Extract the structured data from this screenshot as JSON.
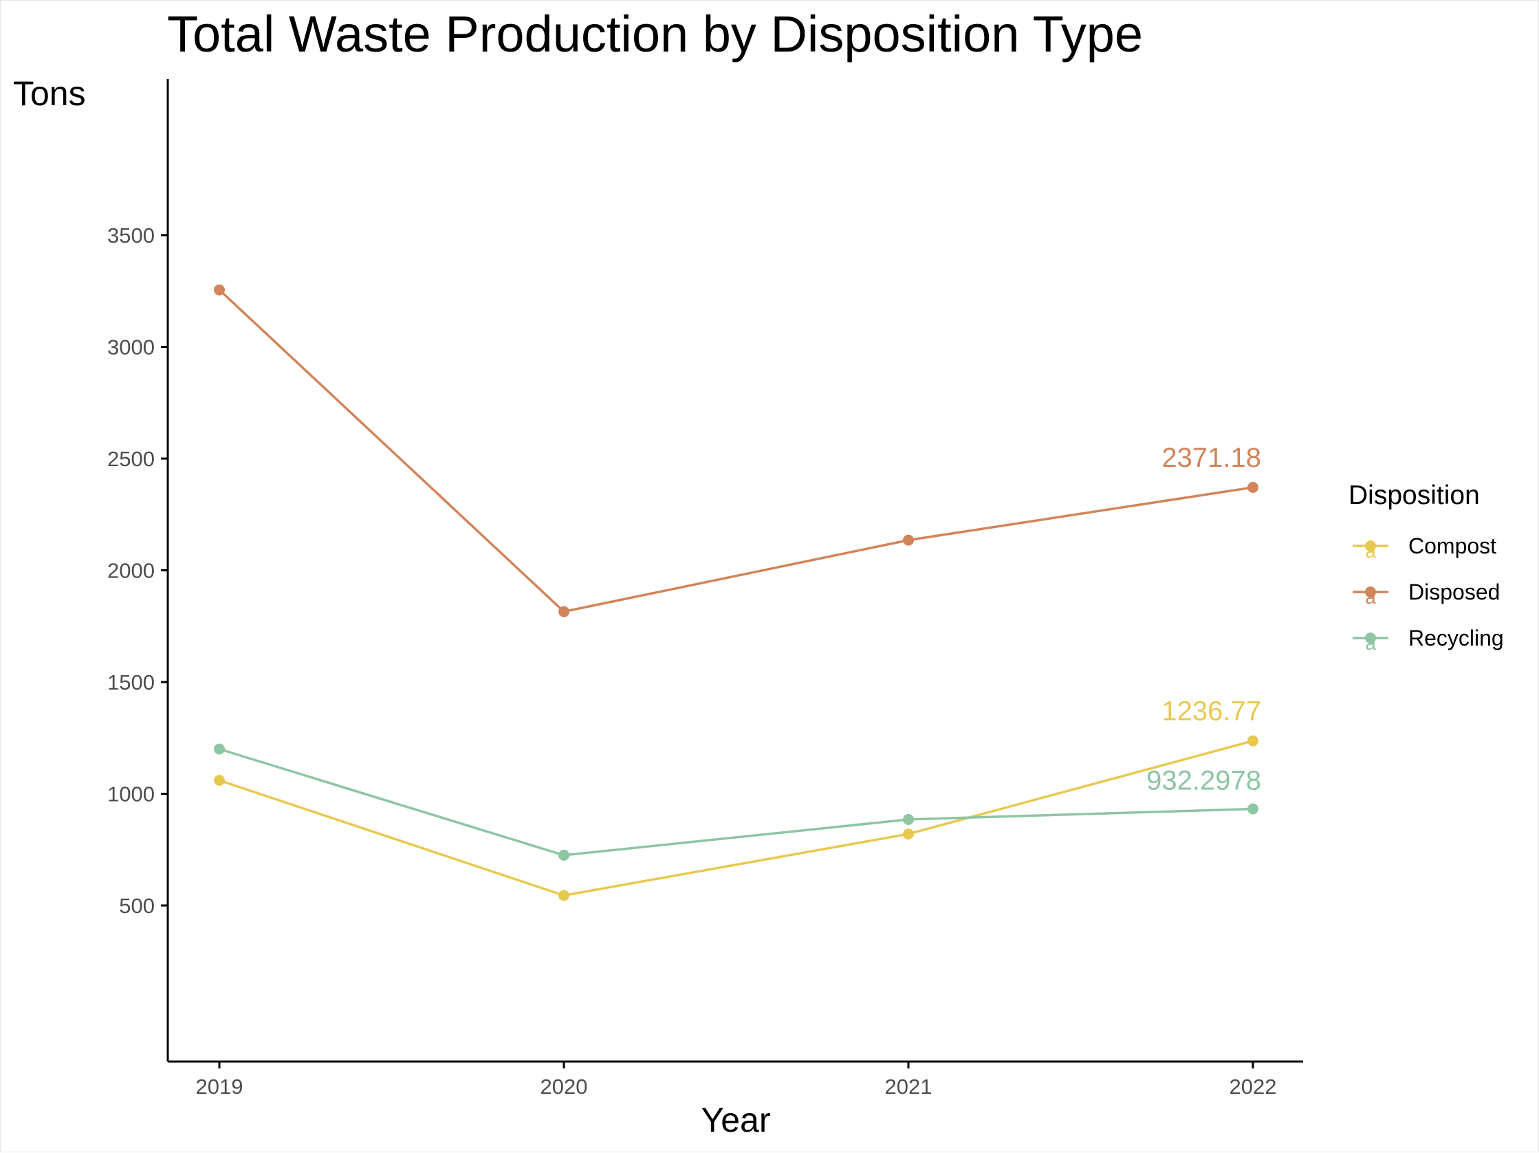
{
  "chart_data": {
    "type": "line",
    "title": "Total Waste Production by Disposition Type",
    "xlabel": "Year",
    "ylabel": "Tons",
    "x": [
      "2019",
      "2020",
      "2021",
      "2022"
    ],
    "y_ticks": [
      500,
      1000,
      1500,
      2000,
      2500,
      3000,
      3500
    ],
    "ylim": [
      0,
      4000
    ],
    "grid": false,
    "legend": {
      "title": "Disposition",
      "position": "right",
      "key_glyph": "a"
    },
    "series": [
      {
        "name": "Compost",
        "color": "#E8C94F",
        "values": [
          1060,
          545,
          820,
          1236.77
        ],
        "end_label": "1236.77"
      },
      {
        "name": "Disposed",
        "color": "#D2845A",
        "values": [
          3255,
          1815,
          2135,
          2371.18
        ],
        "end_label": "2371.18"
      },
      {
        "name": "Recycling",
        "color": "#8EC5A2",
        "values": [
          1200,
          725,
          885,
          932.2978
        ],
        "end_label": "932.2978"
      }
    ]
  }
}
